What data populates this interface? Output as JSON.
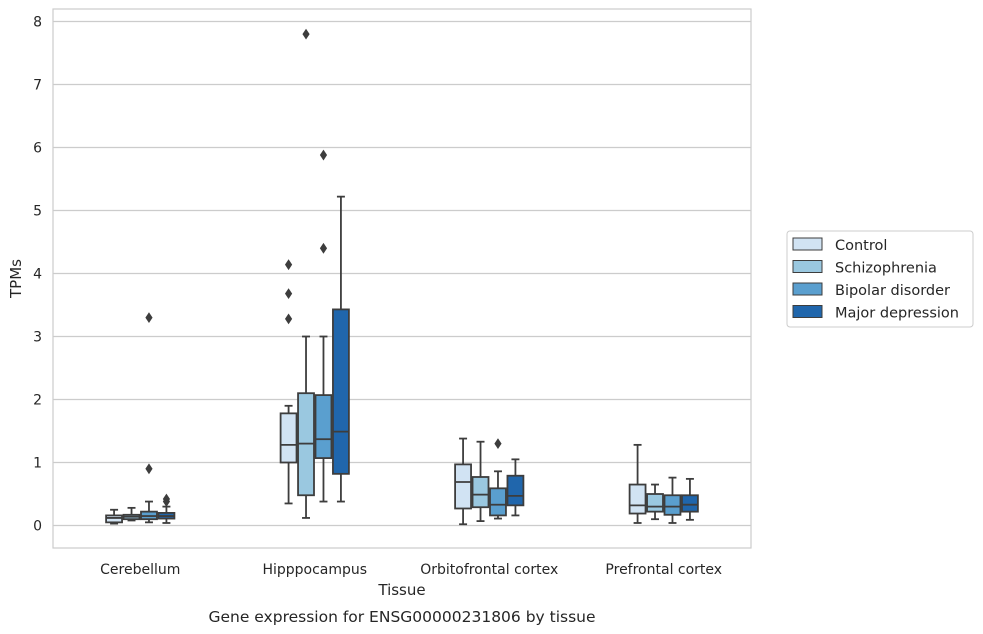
{
  "chart_data": {
    "type": "boxplot",
    "caption": "Gene expression for ENSG00000231806 by tissue",
    "xlabel": "Tissue",
    "ylabel": "TPMs",
    "ylim": [
      -0.35,
      8.2
    ],
    "yticks": [
      0,
      1,
      2,
      3,
      4,
      5,
      6,
      7,
      8
    ],
    "grid": true,
    "legend_position": "right",
    "categories": [
      "Cerebellum",
      "Hipppocampus",
      "Orbitofrontal cortex",
      "Prefrontal cortex"
    ],
    "series": [
      {
        "name": "Control",
        "color": "#d1e3f3",
        "boxes": [
          {
            "whislo": 0.03,
            "q1": 0.05,
            "med": 0.12,
            "q3": 0.16,
            "whishi": 0.25,
            "fliers": []
          },
          {
            "whislo": 0.35,
            "q1": 1.0,
            "med": 1.28,
            "q3": 1.78,
            "whishi": 1.9,
            "fliers": [
              3.28,
              3.68,
              4.14
            ]
          },
          {
            "whislo": 0.02,
            "q1": 0.27,
            "med": 0.69,
            "q3": 0.97,
            "whishi": 1.38,
            "fliers": []
          },
          {
            "whislo": 0.04,
            "q1": 0.19,
            "med": 0.32,
            "q3": 0.65,
            "whishi": 1.28,
            "fliers": []
          }
        ]
      },
      {
        "name": "Schizophrenia",
        "color": "#9ac8e0",
        "boxes": [
          {
            "whislo": 0.08,
            "q1": 0.1,
            "med": 0.14,
            "q3": 0.17,
            "whishi": 0.28,
            "fliers": []
          },
          {
            "whislo": 0.12,
            "q1": 0.48,
            "med": 1.3,
            "q3": 2.1,
            "whishi": 3.0,
            "fliers": [
              7.8
            ]
          },
          {
            "whislo": 0.07,
            "q1": 0.29,
            "med": 0.49,
            "q3": 0.77,
            "whishi": 1.33,
            "fliers": []
          },
          {
            "whislo": 0.1,
            "q1": 0.22,
            "med": 0.3,
            "q3": 0.5,
            "whishi": 0.65,
            "fliers": []
          }
        ]
      },
      {
        "name": "Bipolar disorder",
        "color": "#5a9fcf",
        "boxes": [
          {
            "whislo": 0.05,
            "q1": 0.1,
            "med": 0.15,
            "q3": 0.22,
            "whishi": 0.38,
            "fliers": [
              0.9,
              3.3
            ]
          },
          {
            "whislo": 0.38,
            "q1": 1.07,
            "med": 1.37,
            "q3": 2.07,
            "whishi": 3.0,
            "fliers": [
              4.4,
              5.88
            ]
          },
          {
            "whislo": 0.11,
            "q1": 0.16,
            "med": 0.33,
            "q3": 0.59,
            "whishi": 0.86,
            "fliers": [
              1.3
            ]
          },
          {
            "whislo": 0.04,
            "q1": 0.17,
            "med": 0.3,
            "q3": 0.48,
            "whishi": 0.76,
            "fliers": []
          }
        ]
      },
      {
        "name": "Major depression",
        "color": "#2066ac",
        "boxes": [
          {
            "whislo": 0.04,
            "q1": 0.11,
            "med": 0.15,
            "q3": 0.2,
            "whishi": 0.3,
            "fliers": [
              0.38,
              0.42
            ]
          },
          {
            "whislo": 0.38,
            "q1": 0.82,
            "med": 1.49,
            "q3": 3.43,
            "whishi": 5.22,
            "fliers": []
          },
          {
            "whislo": 0.16,
            "q1": 0.32,
            "med": 0.47,
            "q3": 0.79,
            "whishi": 1.05,
            "fliers": []
          },
          {
            "whislo": 0.09,
            "q1": 0.22,
            "med": 0.33,
            "q3": 0.48,
            "whishi": 0.74,
            "fliers": []
          }
        ]
      }
    ]
  }
}
